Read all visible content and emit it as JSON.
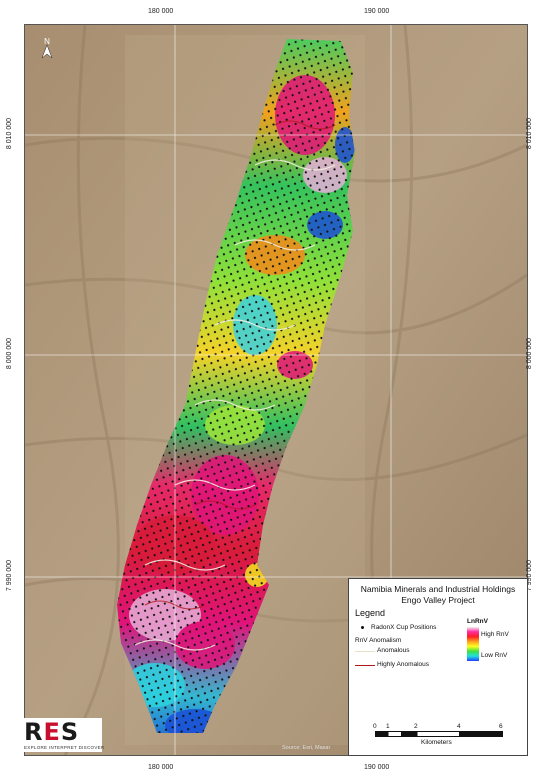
{
  "map": {
    "top_ticks": [
      "180 000",
      "190 000"
    ],
    "bottom_ticks": [
      "180 000",
      "190 000"
    ],
    "left_ticks": [
      "8 010 000",
      "8 000 000",
      "7 990 000"
    ],
    "right_ticks": [
      "8 010 000",
      "8 000 000",
      "7 990 000"
    ],
    "north_arrow_label": "N",
    "source_text": "Source: Esri, Maxar",
    "colors": {
      "sand": "#b29a7c",
      "high": "#e0147a",
      "mid": "#ffee22",
      "low": "#1a3fd6",
      "dots": "#111111",
      "anomalous_line": "#f4efe0",
      "highly_anomalous_line": "#b01818"
    }
  },
  "legend": {
    "title_line1": "Namibia Minerals and Industrial Holdings",
    "title_line2": "Engo Valley Project",
    "heading": "Legend",
    "radonx_label": "RadonX Cup Positions",
    "lnrnv_label": "LnRnV",
    "high_label": "High RnV",
    "low_label": "Low RnV",
    "anomalism_label": "RnV Anomalism",
    "anomalous_label": "Anomalous",
    "highly_anomalous_label": "Highly Anomalous",
    "scale_ticks": [
      "0",
      "1",
      "2",
      "4",
      "6"
    ],
    "scale_unit": "Kilometers"
  },
  "logo": {
    "text_r": "R",
    "text_e": "E",
    "text_s": "S",
    "tagline": "EXPLORE   INTERPRET   DISCOVER"
  }
}
